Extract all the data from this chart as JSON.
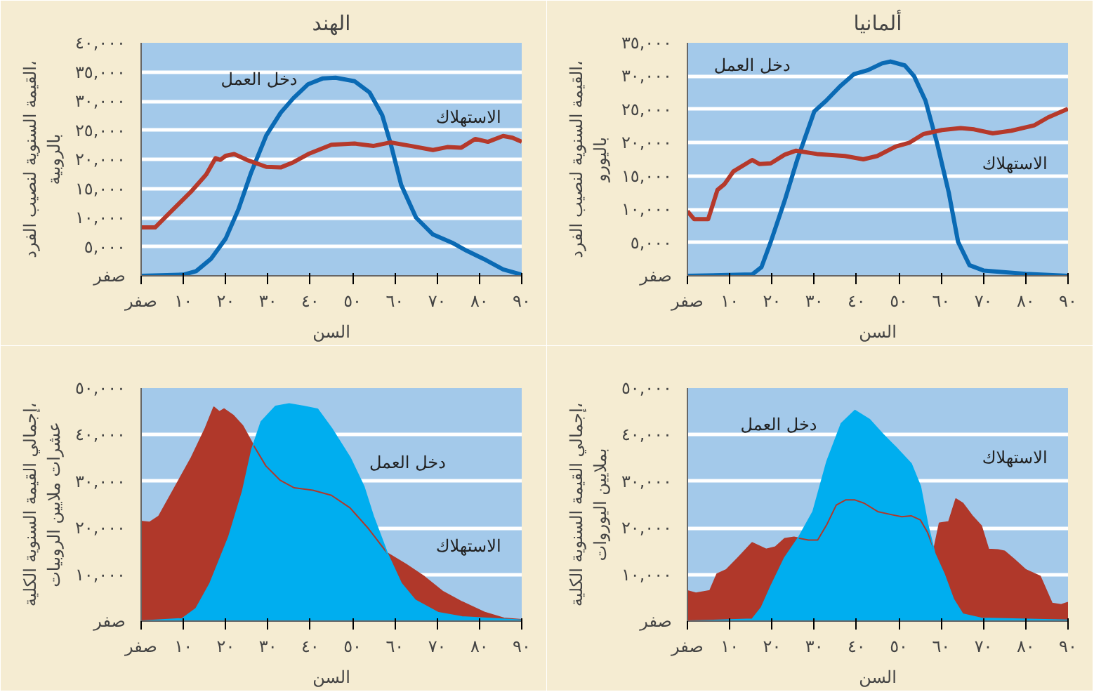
{
  "chart_data": [
    {
      "type": "line",
      "title": "الهند",
      "xlabel": "السن",
      "ylabel": "القيمة السنوية لنصيب الفرد، بالروبية",
      "xlim": [
        0,
        90
      ],
      "ylim": [
        0,
        40000
      ],
      "xticks": [
        {
          "value": 0,
          "label": "صفر"
        },
        {
          "value": 10,
          "label": "١٠"
        },
        {
          "value": 20,
          "label": "٢٠"
        },
        {
          "value": 30,
          "label": "٣٠"
        },
        {
          "value": 40,
          "label": "٤٠"
        },
        {
          "value": 50,
          "label": "٥٠"
        },
        {
          "value": 60,
          "label": "٦٠"
        },
        {
          "value": 70,
          "label": "٧٠"
        },
        {
          "value": 80,
          "label": "٨٠"
        },
        {
          "value": 90,
          "label": "٩٠"
        }
      ],
      "yticks": [
        {
          "value": 0,
          "label": "صفر"
        },
        {
          "value": 5000,
          "label": "٥,٠٠٠"
        },
        {
          "value": 10000,
          "label": "١٠,٠٠٠"
        },
        {
          "value": 15000,
          "label": "١٥,٠٠٠"
        },
        {
          "value": 20000,
          "label": "٢٠,٠٠٠"
        },
        {
          "value": 25000,
          "label": "٢٥,٠٠٠"
        },
        {
          "value": 30000,
          "label": "٣٠,٠٠٠"
        },
        {
          "value": 35000,
          "label": "٣٥,٠٠٠"
        },
        {
          "value": 40000,
          "label": "٤٠,٠٠٠"
        }
      ],
      "grid": "y",
      "legend": false,
      "line_style": "solid",
      "marker": "none",
      "series": [
        {
          "name": "دخل العمل",
          "color": "#0a6ab4",
          "x": [
            0,
            10,
            13,
            16.5,
            20,
            23,
            26,
            29.6,
            33,
            36,
            39.5,
            43,
            46,
            50.5,
            54,
            57,
            59,
            61.5,
            65,
            69,
            73.5,
            77,
            81,
            85.6,
            90
          ],
          "values": [
            0,
            200,
            800,
            2900,
            6400,
            11400,
            17700,
            24100,
            28000,
            30500,
            32900,
            33900,
            34000,
            33400,
            31500,
            27600,
            22700,
            15600,
            10000,
            7100,
            5700,
            4300,
            2900,
            1100,
            200
          ]
        },
        {
          "name": "الاستهلاك",
          "color": "#b5392b",
          "x": [
            0,
            3.3,
            6.6,
            12,
            15.4,
            17.6,
            18.7,
            20,
            22,
            25,
            29.6,
            33,
            36,
            39.5,
            45,
            50.5,
            55,
            59,
            63.7,
            69,
            72.4,
            75.7,
            79,
            82,
            85.6,
            87.8,
            90
          ],
          "values": [
            8300,
            8300,
            10700,
            14600,
            17400,
            20200,
            19900,
            20600,
            20900,
            19900,
            18700,
            18600,
            19500,
            20900,
            22500,
            22700,
            22300,
            22900,
            22300,
            21600,
            22100,
            22000,
            23500,
            23000,
            24000,
            23700,
            23000
          ]
        }
      ]
    },
    {
      "type": "line",
      "title": "ألمانيا",
      "xlabel": "السن",
      "ylabel": "القيمة السنوية لنصيب الفرد، باليورو",
      "xlim": [
        0,
        90
      ],
      "ylim": [
        0,
        35000
      ],
      "xticks": [
        {
          "value": 0,
          "label": "صفر"
        },
        {
          "value": 10,
          "label": "١٠"
        },
        {
          "value": 20,
          "label": "٢٠"
        },
        {
          "value": 30,
          "label": "٣٠"
        },
        {
          "value": 40,
          "label": "٤٠"
        },
        {
          "value": 50,
          "label": "٥٠"
        },
        {
          "value": 60,
          "label": "٦٠"
        },
        {
          "value": 70,
          "label": "٧٠"
        },
        {
          "value": 80,
          "label": "٨٠"
        },
        {
          "value": 90,
          "label": "٩٠"
        }
      ],
      "yticks": [
        {
          "value": 0,
          "label": "صفر"
        },
        {
          "value": 5000,
          "label": "٥,٠٠٠"
        },
        {
          "value": 10000,
          "label": "١٠,٠٠٠"
        },
        {
          "value": 15000,
          "label": "١٥,٠٠٠"
        },
        {
          "value": 20000,
          "label": "٢٠,٠٠٠"
        },
        {
          "value": 25000,
          "label": "٢٥,٠٠٠"
        },
        {
          "value": 30000,
          "label": "٣٠,٠٠٠"
        },
        {
          "value": 35000,
          "label": "٣٥,٠٠٠"
        }
      ],
      "grid": "y",
      "legend": false,
      "line_style": "solid",
      "marker": "none",
      "series": [
        {
          "name": "دخل العمل",
          "color": "#0a6ab4",
          "x": [
            0,
            15.3,
            17.5,
            19.7,
            23,
            26,
            30,
            32.8,
            36,
            39.4,
            42.7,
            46,
            48,
            51.4,
            53.6,
            56.3,
            59,
            61.8,
            64,
            66.7,
            70,
            80,
            90
          ],
          "values": [
            0,
            200,
            1300,
            5100,
            11300,
            17500,
            24700,
            26300,
            28400,
            30300,
            30900,
            31900,
            32200,
            31600,
            30000,
            26300,
            20000,
            12500,
            5100,
            1600,
            800,
            300,
            0
          ]
        },
        {
          "name": "الاستهلاك",
          "color": "#b5392b",
          "x": [
            0,
            1.6,
            4.9,
            7.1,
            8.8,
            10.9,
            15.3,
            17,
            19.7,
            23,
            25.7,
            30.6,
            37.2,
            41.6,
            44.9,
            49.2,
            52.5,
            55.8,
            60.2,
            64.6,
            67.8,
            72.2,
            76.6,
            82,
            85.3,
            90
          ],
          "values": [
            9700,
            8500,
            8500,
            12900,
            13800,
            15700,
            17400,
            16800,
            16900,
            18200,
            18800,
            18300,
            18000,
            17500,
            18000,
            19400,
            20000,
            21300,
            21900,
            22200,
            22000,
            21400,
            21800,
            22600,
            23800,
            25100
          ]
        }
      ]
    },
    {
      "type": "area",
      "xlabel": "السن",
      "ylabel": "إجمالي القيمة السنوية الكلية، عشرات ملايين الروبيات",
      "xlim": [
        0,
        90
      ],
      "ylim": [
        0,
        50000
      ],
      "xticks": [
        {
          "value": 0,
          "label": "صفر"
        },
        {
          "value": 10,
          "label": "١٠"
        },
        {
          "value": 20,
          "label": "٢٠"
        },
        {
          "value": 30,
          "label": "٣٠"
        },
        {
          "value": 40,
          "label": "٤٠"
        },
        {
          "value": 50,
          "label": "٥٠"
        },
        {
          "value": 60,
          "label": "٦٠"
        },
        {
          "value": 70,
          "label": "٧٠"
        },
        {
          "value": 80,
          "label": "٨٠"
        },
        {
          "value": 90,
          "label": "٩٠"
        }
      ],
      "yticks": [
        {
          "value": 0,
          "label": "صفر"
        },
        {
          "value": 10000,
          "label": "١٠,٠٠٠"
        },
        {
          "value": 20000,
          "label": "٢٠,٠٠٠"
        },
        {
          "value": 30000,
          "label": "٣٠,٠٠٠"
        },
        {
          "value": 40000,
          "label": "٤٠,٠٠٠"
        },
        {
          "value": 50000,
          "label": "٥٠,٠٠٠"
        }
      ],
      "grid": "y",
      "legend": false,
      "series": [
        {
          "name": "الاستهلاك",
          "color": "#b0382a",
          "x": [
            0,
            2,
            4.2,
            7.5,
            11.9,
            15.2,
            17.2,
            18.5,
            19.6,
            21.8,
            24,
            26.2,
            29.5,
            32.9,
            36.2,
            40.6,
            45,
            49.4,
            53.8,
            58.2,
            62.6,
            67,
            71.4,
            75.9,
            81.4,
            85.8,
            90
          ],
          "values": [
            21400,
            21200,
            22500,
            27900,
            35100,
            41400,
            45900,
            44900,
            45500,
            44100,
            41900,
            38300,
            33300,
            30200,
            28600,
            28100,
            27000,
            24300,
            19800,
            14600,
            12200,
            9500,
            6300,
            4100,
            1800,
            600,
            300
          ]
        },
        {
          "name": "دخل العمل",
          "color": "#00aeef",
          "x": [
            0,
            9.7,
            13,
            16.3,
            20.7,
            24,
            26.2,
            28.4,
            31.8,
            35,
            38.4,
            41.7,
            45,
            49.4,
            52.7,
            54.9,
            58.2,
            61.5,
            64.8,
            70.3,
            75.9,
            90
          ],
          "values": [
            0,
            500,
            2700,
            8100,
            18000,
            27900,
            36900,
            42800,
            46100,
            46600,
            46100,
            45500,
            41400,
            35100,
            28800,
            22500,
            14600,
            8100,
            4500,
            1800,
            900,
            200
          ]
        }
      ]
    },
    {
      "type": "area",
      "xlabel": "السن",
      "ylabel": "إجمالي القيمة السنوية الكلية، بملايين اليوروات",
      "xlim": [
        0,
        90
      ],
      "ylim": [
        0,
        50000
      ],
      "xticks": [
        {
          "value": 0,
          "label": "صفر"
        },
        {
          "value": 10,
          "label": "١٠"
        },
        {
          "value": 20,
          "label": "٢٠"
        },
        {
          "value": 30,
          "label": "٣٠"
        },
        {
          "value": 40,
          "label": "٤٠"
        },
        {
          "value": 50,
          "label": "٥٠"
        },
        {
          "value": 60,
          "label": "٦٠"
        },
        {
          "value": 70,
          "label": "٧٠"
        },
        {
          "value": 80,
          "label": "٨٠"
        },
        {
          "value": 90,
          "label": "٩٠"
        }
      ],
      "yticks": [
        {
          "value": 0,
          "label": "صفر"
        },
        {
          "value": 10000,
          "label": "١٠,٠٠٠"
        },
        {
          "value": 20000,
          "label": "٢٠,٠٠٠"
        },
        {
          "value": 30000,
          "label": "٣٠,٠٠٠"
        },
        {
          "value": 40000,
          "label": "٤٠,٠٠٠"
        },
        {
          "value": 50000,
          "label": "٥٠,٠٠٠"
        }
      ],
      "grid": "y",
      "legend": false,
      "series": [
        {
          "name": "الاستهلاك",
          "color": "#b0382a",
          "x": [
            0,
            2,
            5.3,
            7,
            9.2,
            12,
            15.3,
            18.6,
            20.8,
            23,
            25.2,
            28.6,
            30.8,
            33,
            35.2,
            37.4,
            39.6,
            41.8,
            45,
            48.5,
            50.7,
            52.9,
            55.1,
            56.8,
            58.3,
            59.6,
            61.8,
            63.5,
            65.1,
            67.3,
            69.5,
            71.2,
            73.4,
            75,
            77.3,
            80,
            83.4,
            86.2,
            88.4,
            90
          ],
          "values": [
            6500,
            6000,
            6500,
            10100,
            11000,
            13600,
            16800,
            15400,
            15900,
            17700,
            18000,
            17400,
            17400,
            20800,
            24900,
            26000,
            26000,
            25300,
            23500,
            22800,
            22400,
            22600,
            21700,
            19000,
            15400,
            21000,
            21300,
            26200,
            25300,
            22600,
            20400,
            15400,
            15300,
            15000,
            13200,
            11000,
            9600,
            3800,
            3500,
            4000
          ]
        },
        {
          "name": "دخل العمل",
          "color": "#00aeef",
          "x": [
            0,
            15.3,
            17.5,
            19.7,
            23,
            26.4,
            29.7,
            33,
            36.4,
            39.6,
            43,
            46.2,
            49.6,
            52.9,
            55.1,
            56.8,
            58.5,
            60.7,
            62.9,
            65.1,
            69.5,
            90
          ],
          "values": [
            0,
            400,
            2900,
            7400,
            13600,
            18100,
            23500,
            34300,
            42400,
            45200,
            43300,
            40100,
            37000,
            33800,
            28900,
            20800,
            14500,
            10100,
            4700,
            1500,
            600,
            200
          ]
        }
      ]
    }
  ]
}
